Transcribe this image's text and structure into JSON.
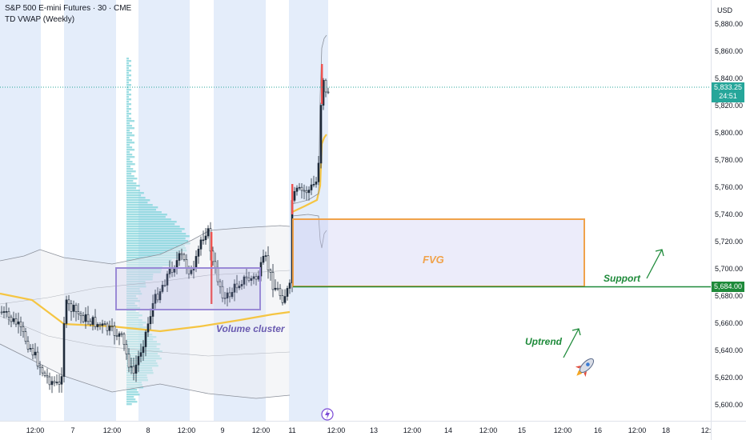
{
  "header": {
    "title": "S&P 500 E-mini Futures · 30 · CME",
    "indicator": "TD VWAP (Weekly)"
  },
  "price_axis": {
    "currency": "USD",
    "labels": [
      "5,880.00",
      "5,860.00",
      "5,840.00",
      "5,820.00",
      "5,800.00",
      "5,780.00",
      "5,760.00",
      "5,740.00",
      "5,720.00",
      "5,700.00",
      "5,680.00",
      "5,660.00",
      "5,640.00",
      "5,620.00",
      "5,600.00"
    ],
    "last_price": "5,833.25",
    "countdown": "24:51",
    "support_level": "5,684.00"
  },
  "time_axis": {
    "labels": [
      "12:00",
      "7",
      "12:00",
      "8",
      "12:00",
      "9",
      "12:00",
      "11",
      "12:00",
      "13",
      "12:00",
      "14",
      "12:00",
      "15",
      "12:00",
      "16",
      "12:00",
      "18",
      "12:"
    ]
  },
  "annotations": {
    "fvg": "FVG",
    "volume_cluster": "Volume cluster",
    "support": "Support",
    "uptrend": "Uptrend"
  },
  "icons": {
    "rocket": "rocket-icon",
    "lightning": "lightning-icon"
  },
  "colors": {
    "up": "#26a69a",
    "down": "#ef5350",
    "candle": "#1e2b3a",
    "session": "#dbe7f8",
    "vwap": "#f5c542",
    "fvg": "#f0a24a",
    "cluster": "#9a8ad6",
    "support": "#1e8a3a",
    "profile": "#7fd3d9"
  }
}
